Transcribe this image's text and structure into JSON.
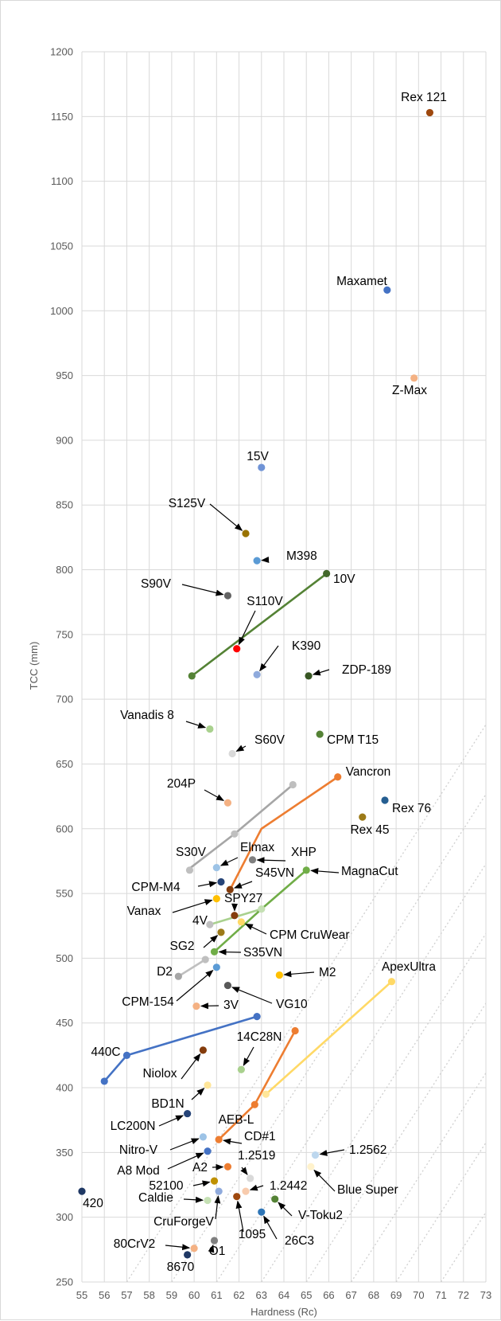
{
  "chart_data": {
    "type": "scatter",
    "xlabel": "Hardness (Rc)",
    "ylabel": "TCC (mm)",
    "xlim": [
      55,
      73
    ],
    "ylim": [
      250,
      1200
    ],
    "x_ticks": [
      55,
      56,
      57,
      58,
      59,
      60,
      61,
      62,
      63,
      64,
      65,
      66,
      67,
      68,
      69,
      70,
      71,
      72,
      73
    ],
    "y_ticks": [
      250,
      300,
      350,
      400,
      450,
      500,
      550,
      600,
      650,
      700,
      750,
      800,
      850,
      900,
      950,
      1000,
      1050,
      1100,
      1150,
      1200
    ],
    "grid": true,
    "reference_lines": "dotted diagonal lines of constant hardness-to-toughness trade-off",
    "points": [
      {
        "label": "Rex 121",
        "x": 70.5,
        "y": 1153,
        "color": "#9e480e"
      },
      {
        "label": "Maxamet",
        "x": 68.6,
        "y": 1016,
        "color": "#4472c4"
      },
      {
        "label": "Z-Max",
        "x": 69.8,
        "y": 948,
        "color": "#f4b183"
      },
      {
        "label": "15V",
        "x": 63.0,
        "y": 879,
        "color": "#6f93d6"
      },
      {
        "label": "S125V",
        "x": 62.3,
        "y": 828,
        "color": "#997300"
      },
      {
        "label": "M398",
        "x": 62.8,
        "y": 807,
        "color": "#5b9bd5"
      },
      {
        "label": "10V",
        "x": 65.9,
        "y": 797,
        "color": "#43682b"
      },
      {
        "label": "S90V",
        "x": 61.5,
        "y": 780,
        "color": "#636363"
      },
      {
        "label": "S110V",
        "x": 61.9,
        "y": 739,
        "color": "#ff0000"
      },
      {
        "label": "K390",
        "x": 62.8,
        "y": 719,
        "color": "#8faadc"
      },
      {
        "label": "ZDP-189",
        "x": 65.1,
        "y": 718,
        "color": "#375623"
      },
      {
        "label": "Vanadis 8",
        "x": 60.7,
        "y": 677,
        "color": "#a9d18e"
      },
      {
        "label": "CPM T15",
        "x": 65.6,
        "y": 673,
        "color": "#548235"
      },
      {
        "label": "S60V",
        "x": 61.7,
        "y": 658,
        "color": "#d9d9d9"
      },
      {
        "label": "Vancron",
        "x": 66.4,
        "y": 640,
        "color": "#ed7d31"
      },
      {
        "label": "204P",
        "x": 61.5,
        "y": 620,
        "color": "#f4b183"
      },
      {
        "label": "Rex 76",
        "x": 68.5,
        "y": 622,
        "color": "#255e91"
      },
      {
        "label": "Rex 45",
        "x": 67.5,
        "y": 609,
        "color": "#9c7a18"
      },
      {
        "label": "S30V",
        "x": 59.8,
        "y": 568,
        "color": "#bfbfbf"
      },
      {
        "label": "Elmax",
        "x": 61.0,
        "y": 570,
        "color": "#9dc3e6"
      },
      {
        "label": "XHP",
        "x": 62.6,
        "y": 576,
        "color": "#7f7f7f"
      },
      {
        "label": "MagnaCut",
        "x": 65.0,
        "y": 568,
        "color": "#70ad47"
      },
      {
        "label": "CPM-M4",
        "x": 61.2,
        "y": 559,
        "color": "#264478"
      },
      {
        "label": "S45VN",
        "x": 61.6,
        "y": 553,
        "color": "#843c0c"
      },
      {
        "label": "Vanax",
        "x": 61.0,
        "y": 546,
        "color": "#ffc000"
      },
      {
        "label": "SPY27",
        "x": 61.8,
        "y": 533,
        "color": "#843c0c"
      },
      {
        "label": "4V",
        "x": 60.7,
        "y": 526,
        "color": "#bfbfbf"
      },
      {
        "label": "CPM CruWear",
        "x": 62.1,
        "y": 528,
        "color": "#ffd966"
      },
      {
        "label": "SG2",
        "x": 61.2,
        "y": 520,
        "color": "#9c7a18"
      },
      {
        "label": "S35VN",
        "x": 60.9,
        "y": 505,
        "color": "#70ad47"
      },
      {
        "label": "D2",
        "x": 59.3,
        "y": 486,
        "color": "#a6a6a6"
      },
      {
        "label": "CPM-154",
        "x": 61.0,
        "y": 493,
        "color": "#5b9bd5"
      },
      {
        "label": "M2",
        "x": 63.8,
        "y": 487,
        "color": "#ffc000"
      },
      {
        "label": "3V",
        "x": 60.1,
        "y": 463,
        "color": "#f4b183"
      },
      {
        "label": "VG10",
        "x": 61.5,
        "y": 479,
        "color": "#595959"
      },
      {
        "label": "ApexUltra",
        "x": 68.8,
        "y": 482,
        "color": "#ffd966"
      },
      {
        "label": "440C",
        "x": 57.0,
        "y": 425,
        "color": "#4472c4"
      },
      {
        "label": "14C28N",
        "x": 62.1,
        "y": 414,
        "color": "#a9d18e"
      },
      {
        "label": "Niolox",
        "x": 60.4,
        "y": 429,
        "color": "#843c0c"
      },
      {
        "label": "BD1N",
        "x": 60.6,
        "y": 402,
        "color": "#ffe699"
      },
      {
        "label": "LC200N",
        "x": 59.7,
        "y": 380,
        "color": "#264478"
      },
      {
        "label": "AEB-L",
        "x": 62.7,
        "y": 387,
        "color": "#ed7d31"
      },
      {
        "label": "CD#1",
        "x": 61.1,
        "y": 360,
        "color": "#ed7d31"
      },
      {
        "label": "Nitro-V",
        "x": 60.4,
        "y": 362,
        "color": "#9dc3e6"
      },
      {
        "label": "A8 Mod",
        "x": 60.6,
        "y": 351,
        "color": "#4472c4"
      },
      {
        "label": "1.2562",
        "x": 65.4,
        "y": 348,
        "color": "#bdd7ee"
      },
      {
        "label": "A2",
        "x": 61.5,
        "y": 339,
        "color": "#ed7d31"
      },
      {
        "label": "1.2519",
        "x": 62.5,
        "y": 330,
        "color": "#d9d9d9"
      },
      {
        "label": "Blue Super",
        "x": 65.2,
        "y": 339,
        "color": "#fff2cc"
      },
      {
        "label": "52100",
        "x": 60.9,
        "y": 328,
        "color": "#bf9000"
      },
      {
        "label": "1.2442",
        "x": 62.3,
        "y": 320,
        "color": "#f8cbad"
      },
      {
        "label": "Caldie",
        "x": 60.6,
        "y": 313,
        "color": "#c5e0b4"
      },
      {
        "label": "CruForgeV",
        "x": 61.1,
        "y": 320,
        "color": "#8faadc"
      },
      {
        "label": "1095",
        "x": 61.9,
        "y": 316,
        "color": "#9e480e"
      },
      {
        "label": "V-Toku2",
        "x": 63.6,
        "y": 314,
        "color": "#548235"
      },
      {
        "label": "26C3",
        "x": 63.0,
        "y": 304,
        "color": "#2e75b6"
      },
      {
        "label": "420",
        "x": 55.0,
        "y": 320,
        "color": "#1f3864"
      },
      {
        "label": "80CrV2",
        "x": 60.0,
        "y": 276,
        "color": "#f4b183"
      },
      {
        "label": "O1",
        "x": 60.9,
        "y": 282,
        "color": "#7f7f7f"
      },
      {
        "label": "8670",
        "x": 59.7,
        "y": 271,
        "color": "#1f3864"
      }
    ],
    "lines": [
      {
        "color": "#548235",
        "points": [
          [
            59.9,
            718
          ],
          [
            65.9,
            797
          ]
        ]
      },
      {
        "color": "#a6a6a6",
        "points": [
          [
            59.7,
            568
          ],
          [
            61.8,
            596
          ],
          [
            64.4,
            634
          ]
        ]
      },
      {
        "color": "#ed7d31",
        "points": [
          [
            61.6,
            553
          ],
          [
            63.0,
            600
          ],
          [
            66.4,
            640
          ]
        ]
      },
      {
        "color": "#a9d18e",
        "points": [
          [
            60.7,
            526
          ],
          [
            63.0,
            538
          ]
        ]
      },
      {
        "color": "#70ad47",
        "points": [
          [
            60.9,
            505
          ],
          [
            63.0,
            538
          ],
          [
            65.0,
            568
          ]
        ]
      },
      {
        "color": "#bfbfbf",
        "points": [
          [
            59.3,
            486
          ],
          [
            60.5,
            499
          ]
        ]
      },
      {
        "color": "#4472c4",
        "points": [
          [
            56.0,
            405
          ],
          [
            57.0,
            425
          ],
          [
            62.8,
            455
          ]
        ]
      },
      {
        "color": "#ed7d31",
        "points": [
          [
            61.1,
            360
          ],
          [
            62.7,
            387
          ],
          [
            64.5,
            444
          ]
        ]
      },
      {
        "color": "#ffd966",
        "points": [
          [
            63.2,
            395
          ],
          [
            68.8,
            482
          ]
        ]
      }
    ],
    "line_points": [
      {
        "x": 59.9,
        "y": 718,
        "color": "#548235"
      },
      {
        "x": 64.4,
        "y": 634,
        "color": "#bfbfbf"
      },
      {
        "x": 61.8,
        "y": 596,
        "color": "#bfbfbf"
      },
      {
        "x": 63.0,
        "y": 538,
        "color": "#c5e0b4"
      },
      {
        "x": 60.5,
        "y": 499,
        "color": "#bfbfbf"
      },
      {
        "x": 56.0,
        "y": 405,
        "color": "#4472c4"
      },
      {
        "x": 62.8,
        "y": 455,
        "color": "#4472c4"
      },
      {
        "x": 64.5,
        "y": 444,
        "color": "#ed7d31"
      },
      {
        "x": 63.2,
        "y": 395,
        "color": "#ffe699"
      }
    ]
  }
}
